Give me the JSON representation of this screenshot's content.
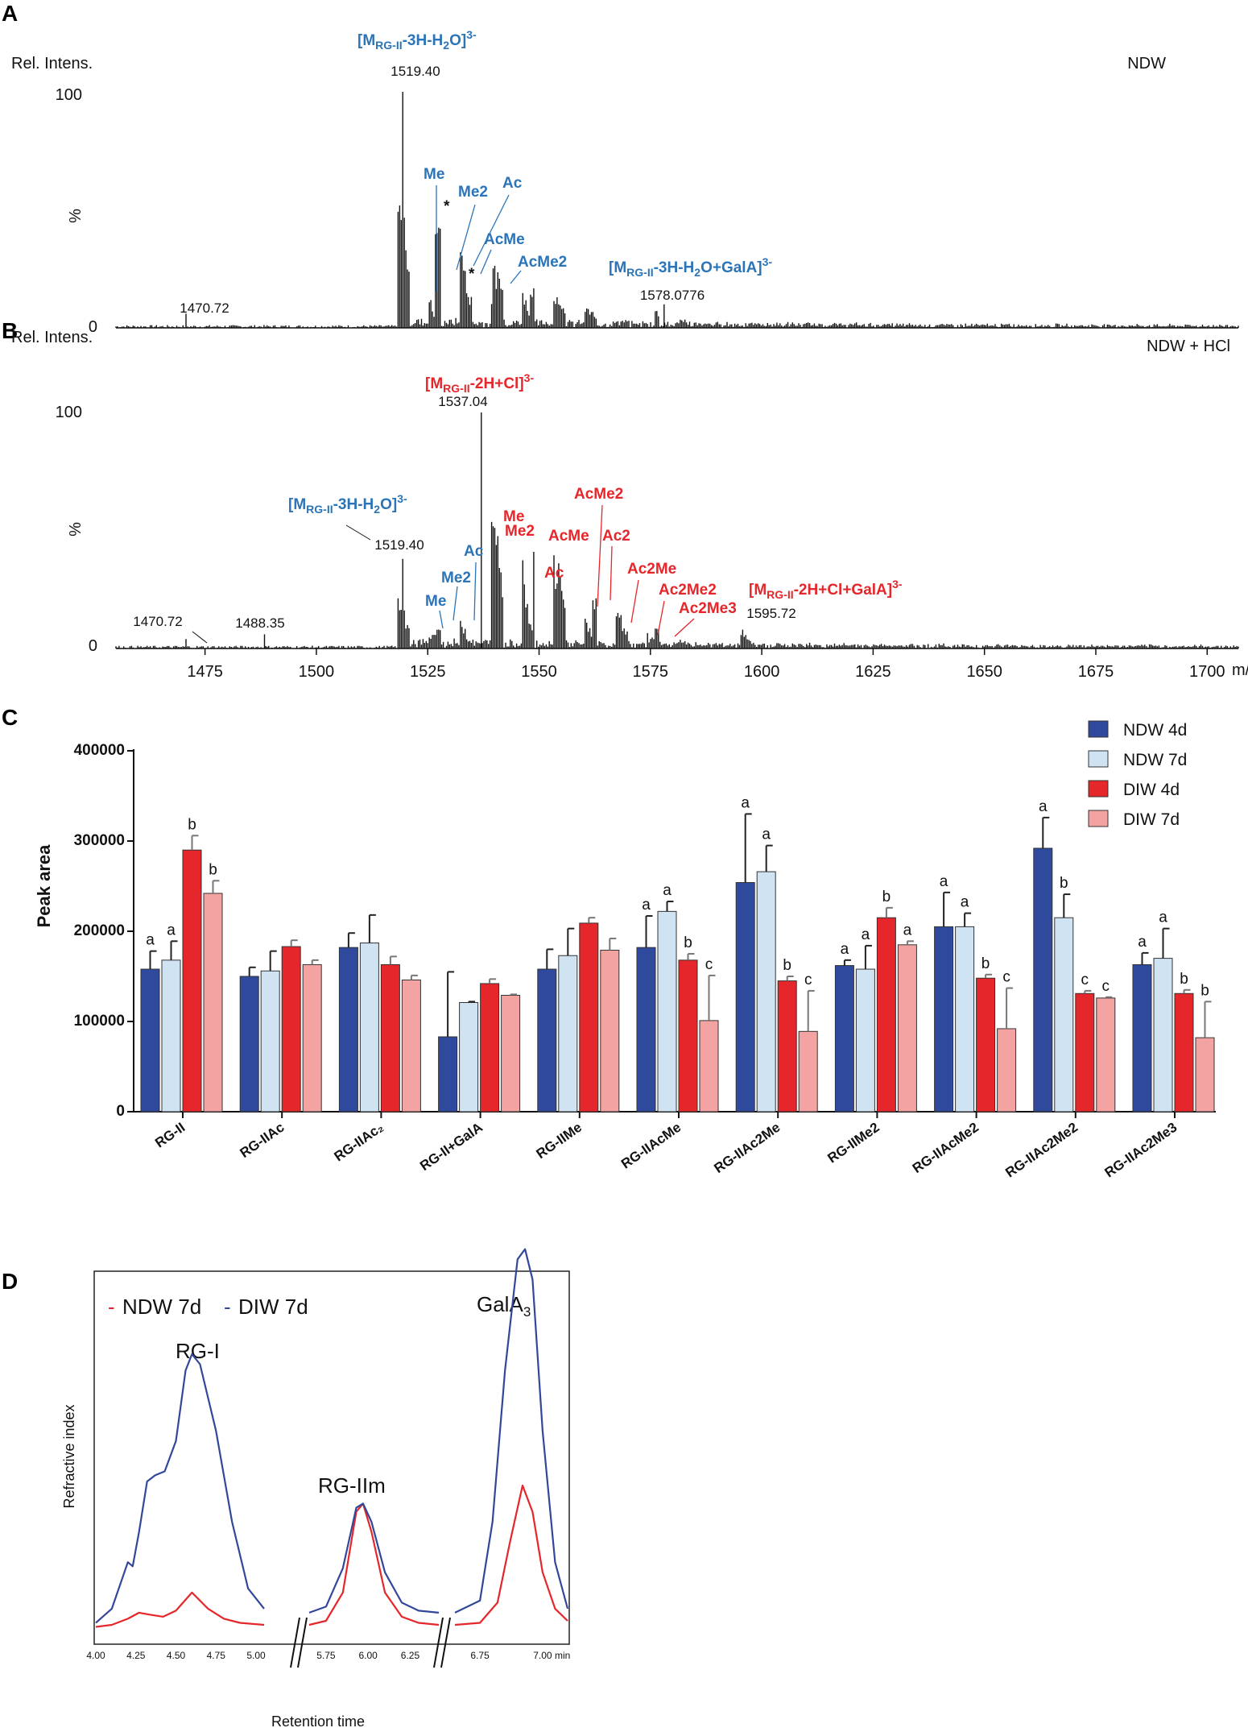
{
  "panels": {
    "a": "A",
    "b": "B",
    "c": "C",
    "d": "D"
  },
  "colors": {
    "blue": "#2b74b8",
    "red": "#e5262a",
    "ndw4": "#2f4a9c",
    "ndw7": "#cfe3f3",
    "diw4": "#e5262a",
    "diw7": "#f4a3a3",
    "trace_blue": "#33479a",
    "trace_red": "#e5262a"
  },
  "chart_data": [
    {
      "id": "A",
      "type": "line",
      "title": "NDW",
      "ylabel": "Rel. Intens.",
      "ylabel2": "%",
      "yticks": [
        "100",
        "0"
      ],
      "ylim": [
        0,
        100
      ],
      "xlim": [
        1455,
        1707
      ],
      "major_peaks": [
        {
          "x": 1470.72,
          "y": 6
        },
        {
          "x": 1519.4,
          "y": 100
        },
        {
          "x": 1578.0776,
          "y": 10
        }
      ],
      "peak_labels": {
        "p1": "1470.72",
        "p2": "1519.40",
        "p3": "1578.0776"
      },
      "annotations": {
        "ion": "[MRG-II-3H-H2O]3-",
        "me": "Me",
        "me2": "Me2",
        "ac": "Ac",
        "acme": "AcMe",
        "acme2": "AcMe2",
        "galaion": "[MRG-II-3H-H2O+GalA]3-",
        "star": "*"
      }
    },
    {
      "id": "B",
      "type": "line",
      "title": "NDW + HCl",
      "ylabel": "Rel. Intens.",
      "ylabel2": "%",
      "yticks": [
        "100",
        "0"
      ],
      "ylim": [
        0,
        100
      ],
      "xlim": [
        1455,
        1707
      ],
      "xticks": [
        1475,
        1500,
        1525,
        1550,
        1575,
        1600,
        1625,
        1650,
        1675,
        1700
      ],
      "xunit": "m/z",
      "major_peaks": [
        {
          "x": 1470.72,
          "y": 4
        },
        {
          "x": 1488.35,
          "y": 6
        },
        {
          "x": 1519.4,
          "y": 38
        },
        {
          "x": 1537.04,
          "y": 100
        },
        {
          "x": 1595.72,
          "y": 8
        }
      ],
      "peak_labels": {
        "p1": "1470.72",
        "p2": "1488.35",
        "p3": "1519.40",
        "p4": "1537.04",
        "p5": "1595.72"
      },
      "annotations": {
        "ion_cl": "[MRG-II-2H+Cl]3-",
        "ion": "[MRG-II-3H-H2O]3-",
        "me": "Me",
        "me2": "Me2",
        "ac": "Ac",
        "rme": "Me",
        "rme2": "Me2",
        "rac": "Ac",
        "racme": "AcMe",
        "racme2": "AcMe2",
        "rac2": "Ac2",
        "rac2me": "Ac2Me",
        "rac2me2": "Ac2Me2",
        "rac2me3": "Ac2Me3",
        "galaion": "[MRG-II-2H+Cl+GalA]3-"
      }
    },
    {
      "id": "C",
      "type": "bar",
      "ylabel": "Peak area",
      "ylim": [
        0,
        400000
      ],
      "yticks": [
        "0",
        "100000",
        "200000",
        "300000",
        "400000"
      ],
      "categories": [
        "RG-II",
        "RG-IIAc",
        "RG-IIAc₂",
        "RG-II+GalA",
        "RG-IIMe",
        "RG-IIAcMe",
        "RG-IIAc2Me",
        "RG-IIMe2",
        "RG-IIAcMe2",
        "RG-IIAc2Me2",
        "RG-IIAc2Me3"
      ],
      "series": [
        {
          "name": "NDW 4d",
          "values": [
            158000,
            150000,
            182000,
            83000,
            158000,
            182000,
            254000,
            162000,
            205000,
            292000,
            163000
          ],
          "errors": [
            20000,
            10000,
            16000,
            72000,
            22000,
            35000,
            76000,
            6000,
            38000,
            34000,
            13000
          ],
          "letters": [
            "a",
            "",
            "",
            "",
            "",
            "a",
            "a",
            "a",
            "a",
            "a",
            "a"
          ]
        },
        {
          "name": "NDW 7d",
          "values": [
            168000,
            156000,
            187000,
            121000,
            173000,
            222000,
            266000,
            158000,
            205000,
            215000,
            170000
          ],
          "errors": [
            21000,
            22000,
            31000,
            1000,
            30000,
            11000,
            29000,
            26000,
            15000,
            26000,
            33000
          ],
          "letters": [
            "a",
            "",
            "",
            "",
            "",
            "a",
            "a",
            "a",
            "a",
            "b",
            "a"
          ]
        },
        {
          "name": "DIW 4d",
          "values": [
            290000,
            183000,
            163000,
            142000,
            209000,
            168000,
            145000,
            215000,
            148000,
            131000,
            131000
          ],
          "errors": [
            16000,
            7000,
            9000,
            5000,
            6000,
            7000,
            5000,
            11000,
            4000,
            3000,
            4000
          ],
          "letters": [
            "b",
            "",
            "",
            "",
            "",
            "b",
            "b",
            "b",
            "b",
            "c",
            "b"
          ]
        },
        {
          "name": "DIW 7d",
          "values": [
            242000,
            163000,
            146000,
            129000,
            179000,
            101000,
            89000,
            185000,
            92000,
            126000,
            82000
          ],
          "errors": [
            14000,
            5000,
            5000,
            1000,
            13000,
            50000,
            45000,
            4000,
            45000,
            1000,
            40000
          ],
          "letters": [
            "b",
            "",
            "",
            "",
            "",
            "c",
            "c",
            "a",
            "c",
            "c",
            "b"
          ]
        }
      ]
    },
    {
      "id": "D",
      "type": "line",
      "xlabel": "Retention time",
      "ylabel": "Refractive index",
      "xunit": "min",
      "legend": [
        "NDW 7d",
        "DIW 7d"
      ],
      "segments": [
        [
          4.0,
          5.05
        ],
        [
          5.65,
          6.42
        ],
        [
          6.65,
          7.1
        ]
      ],
      "xticks": [
        [
          "4.00",
          "4.25",
          "4.50",
          "4.75",
          "5.00"
        ],
        [
          "5.75",
          "6.00",
          "6.25"
        ],
        [
          "6.75",
          "7.00"
        ]
      ],
      "peaks": {
        "rgi": "RG-I",
        "rgiim": "RG-IIm",
        "gala_base": "GalA",
        "gala_sub": "3"
      },
      "series": [
        {
          "name": "NDW 7d",
          "points": [
            [
              4.0,
              0.03
            ],
            [
              4.1,
              0.04
            ],
            [
              4.2,
              0.07
            ],
            [
              4.27,
              0.1
            ],
            [
              4.34,
              0.09
            ],
            [
              4.42,
              0.08
            ],
            [
              4.5,
              0.11
            ],
            [
              4.6,
              0.2
            ],
            [
              4.7,
              0.12
            ],
            [
              4.8,
              0.07
            ],
            [
              4.9,
              0.05
            ],
            [
              5.05,
              0.04
            ],
            [
              5.65,
              0.04
            ],
            [
              5.75,
              0.06
            ],
            [
              5.85,
              0.2
            ],
            [
              5.93,
              0.6
            ],
            [
              5.97,
              0.64
            ],
            [
              6.02,
              0.5
            ],
            [
              6.1,
              0.2
            ],
            [
              6.2,
              0.08
            ],
            [
              6.3,
              0.05
            ],
            [
              6.42,
              0.04
            ],
            [
              6.65,
              0.04
            ],
            [
              6.75,
              0.05
            ],
            [
              6.82,
              0.15
            ],
            [
              6.87,
              0.45
            ],
            [
              6.92,
              0.73
            ],
            [
              6.96,
              0.6
            ],
            [
              7.0,
              0.3
            ],
            [
              7.05,
              0.12
            ],
            [
              7.1,
              0.06
            ]
          ]
        },
        {
          "name": "DIW 7d",
          "points": [
            [
              4.0,
              0.05
            ],
            [
              4.1,
              0.12
            ],
            [
              4.2,
              0.35
            ],
            [
              4.23,
              0.33
            ],
            [
              4.27,
              0.5
            ],
            [
              4.32,
              0.75
            ],
            [
              4.37,
              0.78
            ],
            [
              4.43,
              0.8
            ],
            [
              4.5,
              0.95
            ],
            [
              4.56,
              1.3
            ],
            [
              4.6,
              1.38
            ],
            [
              4.65,
              1.33
            ],
            [
              4.75,
              1.0
            ],
            [
              4.85,
              0.55
            ],
            [
              4.95,
              0.22
            ],
            [
              5.05,
              0.12
            ],
            [
              5.65,
              0.1
            ],
            [
              5.75,
              0.13
            ],
            [
              5.85,
              0.32
            ],
            [
              5.93,
              0.62
            ],
            [
              5.97,
              0.64
            ],
            [
              6.02,
              0.55
            ],
            [
              6.1,
              0.3
            ],
            [
              6.2,
              0.15
            ],
            [
              6.3,
              0.11
            ],
            [
              6.42,
              0.1
            ],
            [
              6.65,
              0.1
            ],
            [
              6.75,
              0.16
            ],
            [
              6.8,
              0.55
            ],
            [
              6.85,
              1.3
            ],
            [
              6.9,
              1.85
            ],
            [
              6.93,
              1.9
            ],
            [
              6.96,
              1.75
            ],
            [
              7.0,
              1.0
            ],
            [
              7.05,
              0.35
            ],
            [
              7.1,
              0.12
            ]
          ]
        }
      ]
    }
  ]
}
